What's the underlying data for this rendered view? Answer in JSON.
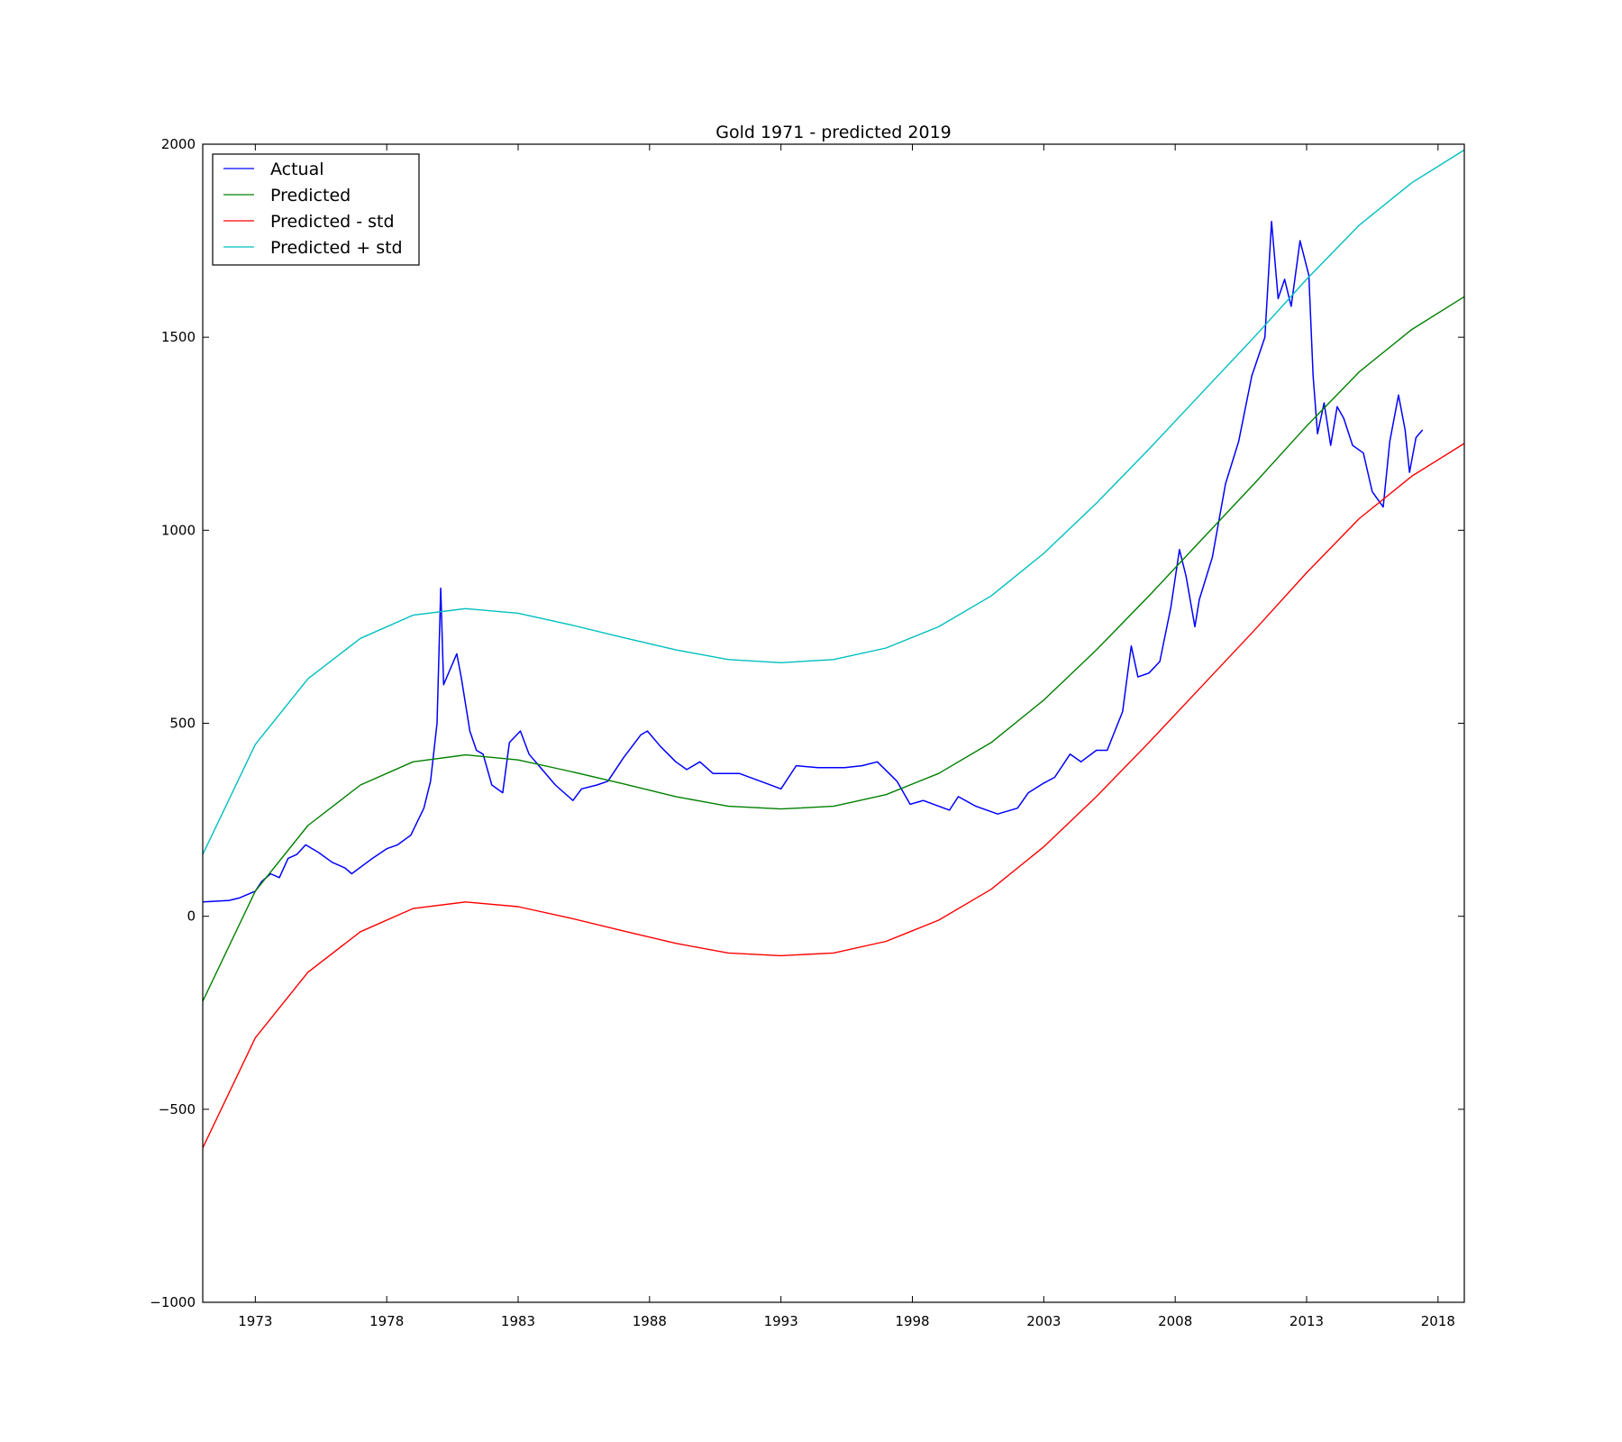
{
  "chart_data": {
    "type": "line",
    "title": "Gold 1971 - predicted 2019",
    "xlabel": "",
    "ylabel": "",
    "x_axis": "date",
    "xlim": [
      "1971-01-01",
      "2019-01-01"
    ],
    "ylim": [
      -1000,
      2000
    ],
    "x_ticks": [
      "1973",
      "1978",
      "1983",
      "1988",
      "1993",
      "1998",
      "2003",
      "2008",
      "2013",
      "2018"
    ],
    "y_ticks": [
      "2000",
      "1500",
      "1000",
      "500",
      "0",
      "−500",
      "−1000"
    ],
    "grid": false,
    "legend": {
      "position": "top-left",
      "frame": true
    },
    "series": [
      {
        "name": "Actual",
        "color": "#0000ff",
        "x": [
          "1971-01-01",
          "1972-01-01",
          "1972-06-01",
          "1973-01-01",
          "1973-04-01",
          "1973-08-01",
          "1973-12-01",
          "1974-04-01",
          "1974-08-01",
          "1974-12-01",
          "1975-06-01",
          "1975-12-01",
          "1976-06-01",
          "1976-09-01",
          "1977-06-01",
          "1978-01-01",
          "1978-06-01",
          "1978-12-01",
          "1979-06-01",
          "1979-09-01",
          "1979-12-01",
          "1980-01-21",
          "1980-03-01",
          "1980-06-01",
          "1980-09-01",
          "1980-11-01",
          "1981-03-01",
          "1981-06-01",
          "1981-09-01",
          "1982-01-01",
          "1982-06-01",
          "1982-09-01",
          "1983-02-01",
          "1983-06-01",
          "1983-12-01",
          "1984-06-01",
          "1985-02-01",
          "1985-06-01",
          "1986-01-01",
          "1986-06-01",
          "1987-01-01",
          "1987-09-01",
          "1987-12-01",
          "1988-06-01",
          "1989-01-01",
          "1989-06-01",
          "1989-12-01",
          "1990-06-01",
          "1991-01-01",
          "1991-06-01",
          "1992-06-01",
          "1993-01-01",
          "1993-08-01",
          "1994-06-01",
          "1995-06-01",
          "1996-02-01",
          "1996-09-01",
          "1997-06-01",
          "1997-12-01",
          "1998-06-01",
          "1999-06-01",
          "1999-10-01",
          "2000-06-01",
          "2001-04-01",
          "2002-01-01",
          "2002-06-01",
          "2003-01-01",
          "2003-06-01",
          "2004-01-01",
          "2004-06-01",
          "2005-01-01",
          "2005-06-01",
          "2006-01-01",
          "2006-05-01",
          "2006-08-01",
          "2007-01-01",
          "2007-06-01",
          "2007-11-01",
          "2008-03-01",
          "2008-06-01",
          "2008-10-01",
          "2008-12-01",
          "2009-06-01",
          "2009-12-01",
          "2010-06-01",
          "2010-12-01",
          "2011-06-01",
          "2011-09-01",
          "2011-12-01",
          "2012-03-01",
          "2012-06-01",
          "2012-10-01",
          "2013-02-01",
          "2013-04-01",
          "2013-06-01",
          "2013-09-01",
          "2013-12-01",
          "2014-03-01",
          "2014-06-01",
          "2014-10-01",
          "2015-03-01",
          "2015-07-01",
          "2015-12-01",
          "2016-03-01",
          "2016-07-01",
          "2016-10-01",
          "2016-12-01",
          "2017-03-01",
          "2017-06-01"
        ],
        "y": [
          37,
          41,
          48,
          65,
          90,
          110,
          100,
          150,
          160,
          185,
          165,
          140,
          125,
          110,
          148,
          175,
          185,
          210,
          280,
          350,
          500,
          850,
          600,
          640,
          680,
          620,
          480,
          430,
          420,
          340,
          320,
          450,
          480,
          420,
          380,
          340,
          300,
          330,
          340,
          350,
          410,
          470,
          480,
          440,
          400,
          380,
          400,
          370,
          370,
          370,
          345,
          330,
          390,
          385,
          385,
          390,
          400,
          350,
          290,
          300,
          275,
          310,
          285,
          265,
          280,
          320,
          345,
          360,
          420,
          400,
          430,
          430,
          530,
          700,
          620,
          630,
          660,
          800,
          950,
          880,
          750,
          820,
          930,
          1120,
          1230,
          1400,
          1500,
          1800,
          1600,
          1650,
          1580,
          1750,
          1660,
          1400,
          1250,
          1330,
          1220,
          1320,
          1290,
          1220,
          1200,
          1100,
          1060,
          1230,
          1350,
          1260,
          1150,
          1240,
          1260
        ]
      },
      {
        "name": "Predicted",
        "color": "#008000",
        "x": [
          "1971-01-01",
          "1973-01-01",
          "1975-01-01",
          "1977-01-01",
          "1979-01-01",
          "1981-01-01",
          "1983-01-01",
          "1985-01-01",
          "1987-01-01",
          "1989-01-01",
          "1991-01-01",
          "1993-01-01",
          "1995-01-01",
          "1997-01-01",
          "1999-01-01",
          "2001-01-01",
          "2003-01-01",
          "2005-01-01",
          "2007-01-01",
          "2009-01-01",
          "2011-01-01",
          "2013-01-01",
          "2015-01-01",
          "2017-01-01",
          "2019-01-01"
        ],
        "y": [
          -220,
          65,
          235,
          340,
          400,
          418,
          405,
          375,
          343,
          310,
          285,
          278,
          285,
          315,
          370,
          450,
          560,
          690,
          830,
          975,
          1120,
          1270,
          1410,
          1520,
          1605
        ]
      },
      {
        "name": "Predicted - std",
        "color": "#ff0000",
        "x": [
          "1971-01-01",
          "1973-01-01",
          "1975-01-01",
          "1977-01-01",
          "1979-01-01",
          "1981-01-01",
          "1983-01-01",
          "1985-01-01",
          "1987-01-01",
          "1989-01-01",
          "1991-01-01",
          "1993-01-01",
          "1995-01-01",
          "1997-01-01",
          "1999-01-01",
          "2001-01-01",
          "2003-01-01",
          "2005-01-01",
          "2007-01-01",
          "2009-01-01",
          "2011-01-01",
          "2013-01-01",
          "2015-01-01",
          "2017-01-01",
          "2019-01-01"
        ],
        "y": [
          -600,
          -315,
          -145,
          -40,
          20,
          37,
          25,
          -5,
          -38,
          -70,
          -95,
          -102,
          -95,
          -65,
          -10,
          70,
          180,
          310,
          450,
          595,
          740,
          890,
          1030,
          1140,
          1225
        ]
      },
      {
        "name": "Predicted + std",
        "color": "#00bfbf",
        "x": [
          "1971-01-01",
          "1973-01-01",
          "1975-01-01",
          "1977-01-01",
          "1979-01-01",
          "1981-01-01",
          "1983-01-01",
          "1985-01-01",
          "1987-01-01",
          "1989-01-01",
          "1991-01-01",
          "1993-01-01",
          "1995-01-01",
          "1997-01-01",
          "1999-01-01",
          "2001-01-01",
          "2003-01-01",
          "2005-01-01",
          "2007-01-01",
          "2009-01-01",
          "2011-01-01",
          "2013-01-01",
          "2015-01-01",
          "2017-01-01",
          "2019-01-01"
        ],
        "y": [
          160,
          445,
          615,
          720,
          780,
          797,
          785,
          755,
          722,
          690,
          665,
          657,
          665,
          695,
          750,
          830,
          940,
          1070,
          1210,
          1355,
          1500,
          1650,
          1790,
          1900,
          1985
        ]
      }
    ]
  }
}
